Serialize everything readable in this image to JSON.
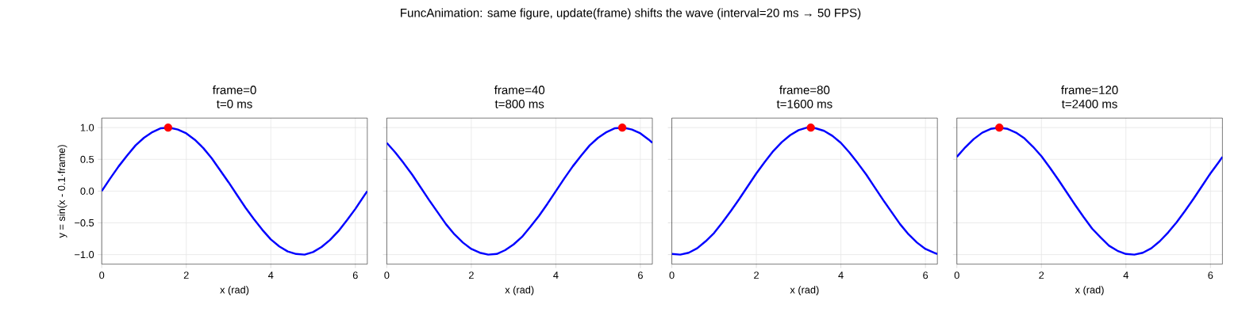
{
  "chart_data": [
    {
      "type": "line",
      "title": "frame=0",
      "subtitle": "t=0 ms",
      "xlabel": "x (rad)",
      "ylabel": "y = sin(x - 0.1·frame)",
      "annotations": [
        "FuncAnimation: same figure, update(frame) shifts the wave  (interval=20 ms → 50 FPS)"
      ],
      "grid": true,
      "xlim": [
        0,
        6.283
      ],
      "ylim": [
        -1.15,
        1.15
      ],
      "xticks": [
        0,
        2,
        4,
        6
      ],
      "yticks": [
        {
          "value": -1,
          "label": "−1.0"
        },
        {
          "value": -0.5,
          "label": "−0.5"
        },
        {
          "value": 0,
          "label": "0.0"
        },
        {
          "value": 0.5,
          "label": "0.5"
        },
        {
          "value": 1,
          "label": "1.0"
        }
      ],
      "x": [
        0,
        0.2,
        0.4,
        0.6,
        0.8,
        1.0,
        1.2,
        1.4,
        1.6,
        1.8,
        2.0,
        2.2,
        2.4,
        2.6,
        2.8,
        3.0,
        3.2,
        3.4,
        3.6,
        3.8,
        4.0,
        4.2,
        4.4,
        4.6,
        4.8,
        5.0,
        5.2,
        5.4,
        5.6,
        5.8,
        6.0,
        6.2,
        6.283
      ],
      "series": [
        {
          "color": "#0000ff",
          "values": [
            0.0,
            0.2,
            0.39,
            0.56,
            0.72,
            0.84,
            0.93,
            0.99,
            1.0,
            0.97,
            0.91,
            0.81,
            0.68,
            0.52,
            0.33,
            0.14,
            -0.06,
            -0.26,
            -0.44,
            -0.61,
            -0.76,
            -0.87,
            -0.95,
            -0.99,
            -1.0,
            -0.96,
            -0.88,
            -0.77,
            -0.63,
            -0.46,
            -0.28,
            -0.08,
            0.0
          ]
        },
        {
          "type": "scatter",
          "color": "#ff0000",
          "marker": "circle",
          "x": [
            1.571
          ],
          "values": [
            1.0
          ]
        }
      ]
    },
    {
      "type": "line",
      "title": "frame=40",
      "subtitle": "t=800 ms",
      "xlabel": "x (rad)",
      "tick_labels": "x",
      "grid": true,
      "xlim": [
        0,
        6.283
      ],
      "ylim": [
        -1.15,
        1.15
      ],
      "xticks": [
        0,
        2,
        4,
        6
      ],
      "yticks": [
        {
          "value": -1,
          "label": null
        },
        {
          "value": -0.5,
          "label": null
        },
        {
          "value": 0,
          "label": null
        },
        {
          "value": 0.5,
          "label": null
        },
        {
          "value": 1,
          "label": null
        }
      ],
      "x": [
        0,
        0.2,
        0.4,
        0.6,
        0.8,
        1.0,
        1.2,
        1.4,
        1.6,
        1.8,
        2.0,
        2.2,
        2.4,
        2.6,
        2.8,
        3.0,
        3.2,
        3.4,
        3.6,
        3.8,
        4.0,
        4.2,
        4.4,
        4.6,
        4.8,
        5.0,
        5.2,
        5.4,
        5.6,
        5.8,
        6.0,
        6.2,
        6.283
      ],
      "series": [
        {
          "color": "#0000ff",
          "values": [
            0.76,
            0.61,
            0.44,
            0.26,
            0.06,
            -0.14,
            -0.33,
            -0.52,
            -0.68,
            -0.81,
            -0.91,
            -0.97,
            -1.0,
            -0.99,
            -0.93,
            -0.84,
            -0.72,
            -0.56,
            -0.39,
            -0.2,
            0.0,
            0.2,
            0.39,
            0.56,
            0.72,
            0.84,
            0.93,
            0.99,
            1.0,
            0.97,
            0.91,
            0.81,
            0.76
          ]
        },
        {
          "type": "scatter",
          "color": "#ff0000",
          "marker": "circle",
          "x": [
            5.571
          ],
          "values": [
            1.0
          ]
        }
      ]
    },
    {
      "type": "line",
      "title": "frame=80",
      "subtitle": "t=1600 ms",
      "xlabel": "x (rad)",
      "tick_labels": "x",
      "grid": true,
      "xlim": [
        0,
        6.283
      ],
      "ylim": [
        -1.15,
        1.15
      ],
      "xticks": [
        0,
        2,
        4,
        6
      ],
      "yticks": [
        {
          "value": -1,
          "label": null
        },
        {
          "value": -0.5,
          "label": null
        },
        {
          "value": 0,
          "label": null
        },
        {
          "value": 0.5,
          "label": null
        },
        {
          "value": 1,
          "label": null
        }
      ],
      "x": [
        0,
        0.2,
        0.4,
        0.6,
        0.8,
        1.0,
        1.2,
        1.4,
        1.6,
        1.8,
        2.0,
        2.2,
        2.4,
        2.6,
        2.8,
        3.0,
        3.2,
        3.4,
        3.6,
        3.8,
        4.0,
        4.2,
        4.4,
        4.6,
        4.8,
        5.0,
        5.2,
        5.4,
        5.6,
        5.8,
        6.0,
        6.2,
        6.283
      ],
      "series": [
        {
          "color": "#0000ff",
          "values": [
            -0.99,
            -1.0,
            -0.97,
            -0.9,
            -0.79,
            -0.66,
            -0.49,
            -0.31,
            -0.12,
            0.08,
            0.28,
            0.46,
            0.63,
            0.77,
            0.88,
            0.96,
            1.0,
            0.99,
            0.95,
            0.87,
            0.76,
            0.61,
            0.44,
            0.26,
            0.06,
            -0.14,
            -0.33,
            -0.52,
            -0.68,
            -0.81,
            -0.91,
            -0.97,
            -0.99
          ]
        },
        {
          "type": "scatter",
          "color": "#ff0000",
          "marker": "circle",
          "x": [
            3.288
          ],
          "values": [
            1.0
          ]
        }
      ]
    },
    {
      "type": "line",
      "title": "frame=120",
      "subtitle": "t=2400 ms",
      "xlabel": "x (rad)",
      "tick_labels": "x",
      "grid": true,
      "xlim": [
        0,
        6.283
      ],
      "ylim": [
        -1.15,
        1.15
      ],
      "xticks": [
        0,
        2,
        4,
        6
      ],
      "yticks": [
        {
          "value": -1,
          "label": null
        },
        {
          "value": -0.5,
          "label": null
        },
        {
          "value": 0,
          "label": null
        },
        {
          "value": 0.5,
          "label": null
        },
        {
          "value": 1,
          "label": null
        }
      ],
      "x": [
        0,
        0.2,
        0.4,
        0.6,
        0.8,
        1.0,
        1.2,
        1.4,
        1.6,
        1.8,
        2.0,
        2.2,
        2.4,
        2.6,
        2.8,
        3.0,
        3.2,
        3.4,
        3.6,
        3.8,
        4.0,
        4.2,
        4.4,
        4.6,
        4.8,
        5.0,
        5.2,
        5.4,
        5.6,
        5.8,
        6.0,
        6.2,
        6.283
      ],
      "series": [
        {
          "color": "#0000ff",
          "values": [
            0.54,
            0.69,
            0.82,
            0.92,
            0.98,
            1.0,
            0.98,
            0.92,
            0.83,
            0.7,
            0.55,
            0.37,
            0.18,
            -0.02,
            -0.22,
            -0.41,
            -0.59,
            -0.73,
            -0.86,
            -0.94,
            -0.99,
            -1.0,
            -0.97,
            -0.9,
            -0.79,
            -0.65,
            -0.49,
            -0.31,
            -0.12,
            0.08,
            0.28,
            0.46,
            0.54
          ]
        },
        {
          "type": "scatter",
          "color": "#ff0000",
          "marker": "circle",
          "x": [
            1.005
          ],
          "values": [
            1.0
          ]
        }
      ]
    }
  ]
}
